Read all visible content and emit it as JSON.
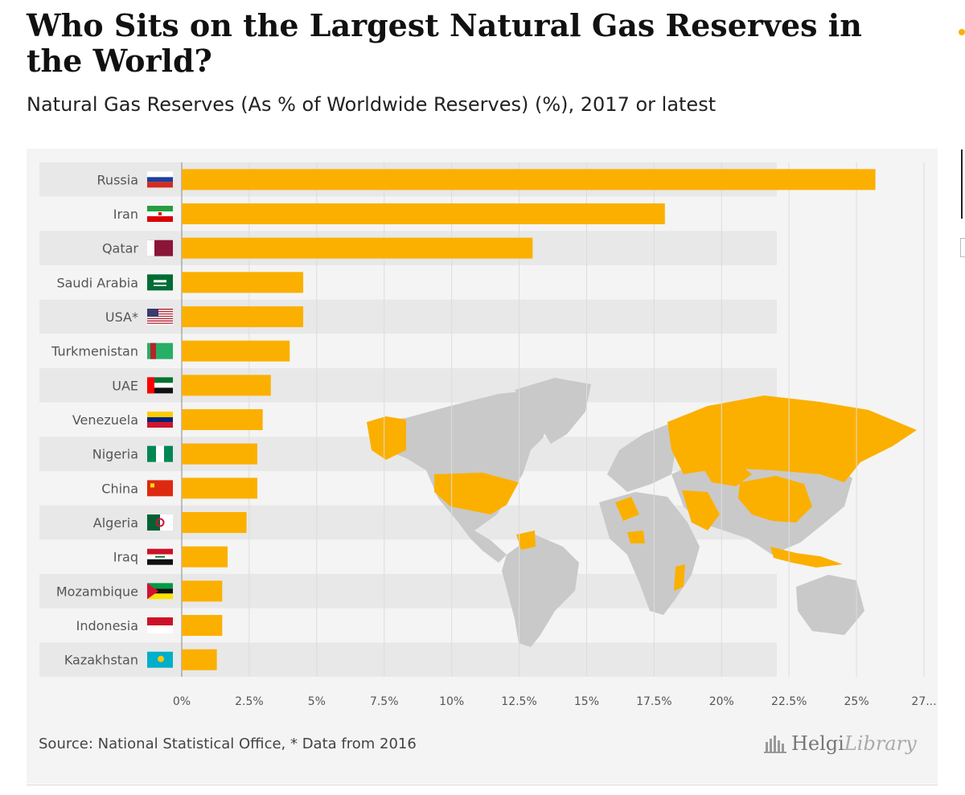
{
  "chart_data": {
    "type": "bar",
    "orientation": "horizontal",
    "title": "Who Sits on the Largest Natural Gas Reserves in the World?",
    "subtitle": "Natural Gas Reserves (As % of Worldwide Reserves) (%), 2017 or latest",
    "categories": [
      "Russia",
      "Iran",
      "Qatar",
      "Saudi Arabia",
      "USA*",
      "Turkmenistan",
      "UAE",
      "Venezuela",
      "Nigeria",
      "China",
      "Algeria",
      "Iraq",
      "Mozambique",
      "Indonesia",
      "Kazakhstan"
    ],
    "values": [
      25.7,
      17.9,
      13.0,
      4.5,
      4.5,
      4.0,
      3.3,
      3.0,
      2.8,
      2.8,
      2.4,
      1.7,
      1.5,
      1.5,
      1.3
    ],
    "xlim": [
      0,
      27.5
    ],
    "xticks": [
      "0%",
      "2.5%",
      "5%",
      "7.5%",
      "10%",
      "12.5%",
      "15%",
      "17.5%",
      "20%",
      "22.5%",
      "25%",
      "27..."
    ],
    "xtick_values": [
      0,
      2.5,
      5,
      7.5,
      10,
      12.5,
      15,
      17.5,
      20,
      22.5,
      25,
      27.5
    ],
    "bar_color": "#fbb000",
    "grid": true,
    "source": "Source: National Statistical Office, * Data from 2016",
    "logo": {
      "part1": "Helgi",
      "part2": "Library"
    },
    "flags": [
      "flag-russia",
      "flag-iran",
      "flag-qatar",
      "flag-saudi-arabia",
      "flag-usa",
      "flag-turkmenistan",
      "flag-uae",
      "flag-venezuela",
      "flag-nigeria",
      "flag-china",
      "flag-algeria",
      "flag-iraq",
      "flag-mozambique",
      "flag-indonesia",
      "flag-kazakhstan"
    ]
  }
}
